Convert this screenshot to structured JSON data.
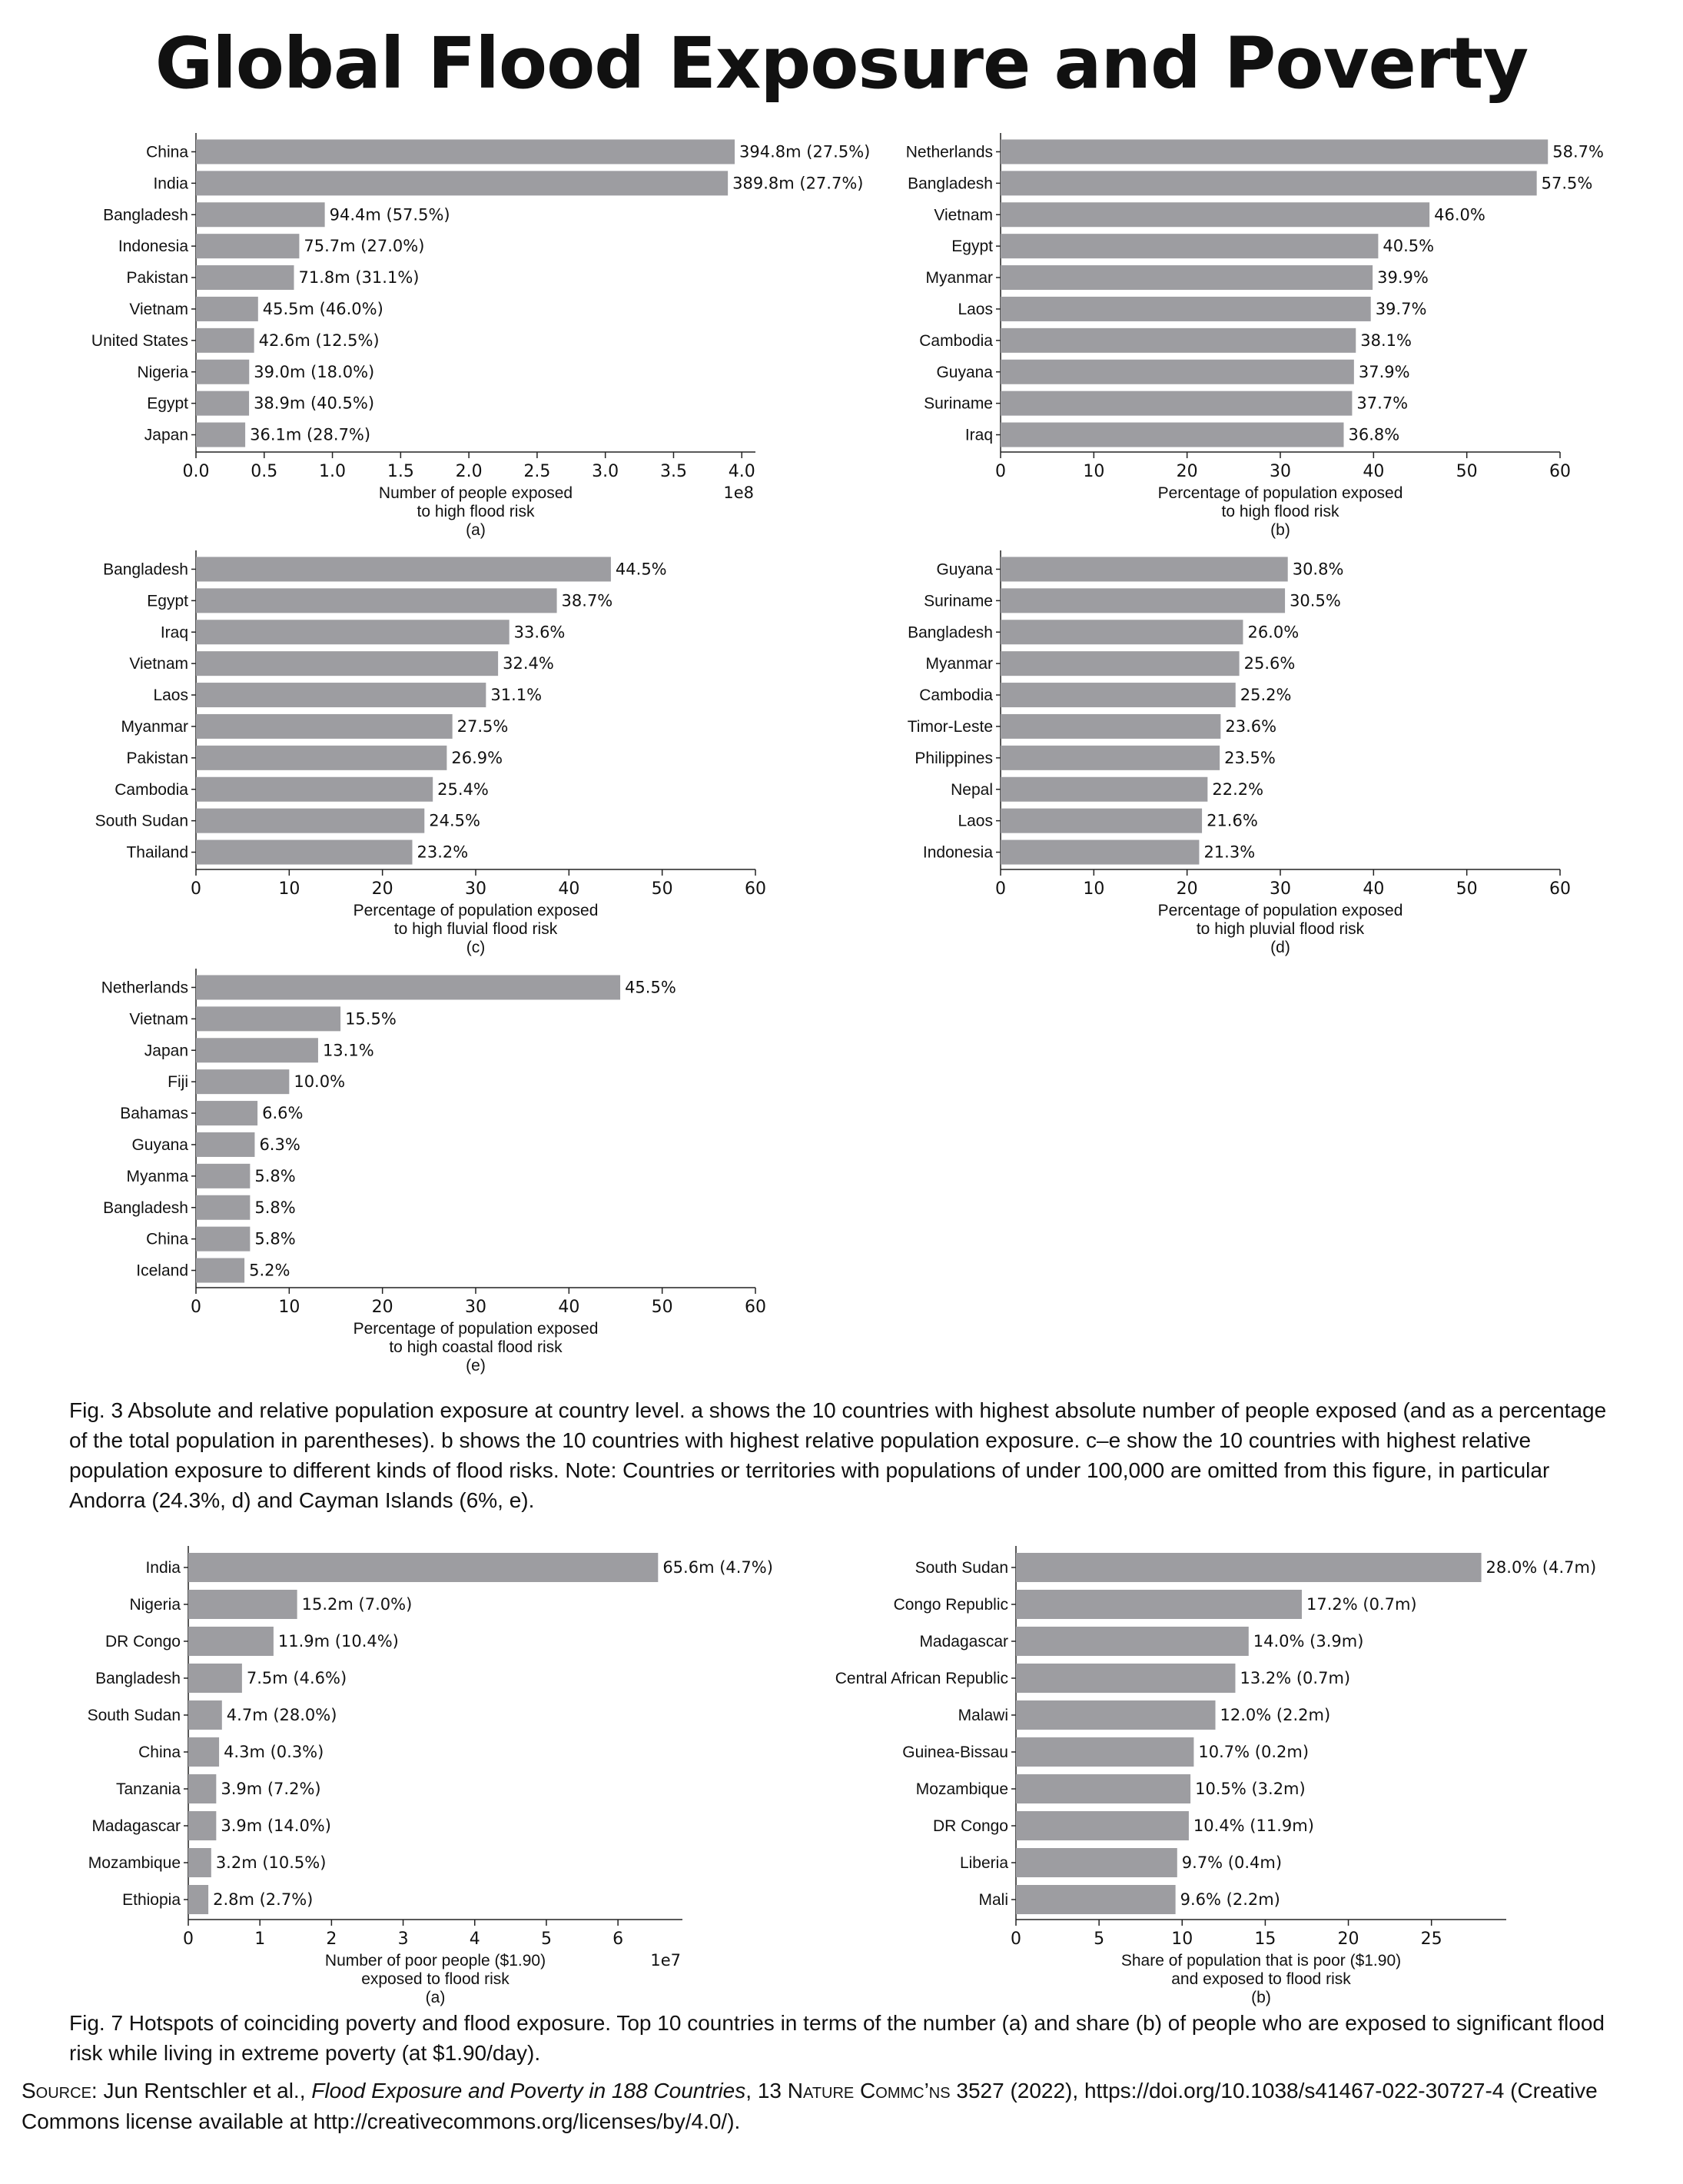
{
  "title": "Global Flood Exposure and Poverty",
  "captions": {
    "fig3": "Fig. 3 Absolute and relative population exposure at country level. a shows the 10 countries with highest absolute number of people exposed (and as a percentage of the total population in parentheses). b shows the 10 countries with highest relative population exposure. c–e show the 10 countries with highest relative population exposure to different kinds of flood risks. Note: Countries or territories with populations of under 100,000 are omitted from this figure, in particular Andorra (24.3%, d) and Cayman Islands (6%, e).",
    "fig7": "Fig. 7 Hotspots of coinciding poverty and flood exposure. Top 10 countries in terms of the number (a) and share (b) of people who are exposed to significant flood risk while living in extreme poverty (at $1.90/day)."
  },
  "source": {
    "lead": "Source",
    "authors": ": Jun Rentschler et al., ",
    "work": "Flood Exposure and Poverty in 188 Countries",
    "vol": ", 13 ",
    "journal": "Nature Commc’ns",
    "rest": " 3527 (2022), https://doi.org/10.1038/s41467-022-30727-4 (Creative Commons license available at http://creativecommons.org/licenses/by/4.0/)."
  },
  "chart_data": [
    {
      "id": "fig3a",
      "type": "bar",
      "orientation": "horizontal",
      "categories": [
        "China",
        "India",
        "Bangladesh",
        "Indonesia",
        "Pakistan",
        "Vietnam",
        "United States",
        "Nigeria",
        "Egypt",
        "Japan"
      ],
      "values": [
        394800000,
        389800000,
        94400000,
        75700000,
        71800000,
        45500000,
        42600000,
        39000000,
        38900000,
        36100000
      ],
      "value_labels": [
        "394.8m (27.5%)",
        "389.8m (27.7%)",
        "94.4m (57.5%)",
        "75.7m (27.0%)",
        "71.8m (31.1%)",
        "45.5m (46.0%)",
        "42.6m (12.5%)",
        "39.0m (18.0%)",
        "38.9m (40.5%)",
        "36.1m (28.7%)"
      ],
      "xlim": [
        0,
        410000000
      ],
      "ticks": [
        0,
        50000000,
        100000000,
        150000000,
        200000000,
        250000000,
        300000000,
        350000000,
        400000000
      ],
      "tick_labels": [
        "0.0",
        "0.5",
        "1.0",
        "1.5",
        "2.0",
        "2.5",
        "3.0",
        "3.5",
        "4.0"
      ],
      "offset_label": "1e8",
      "xlabel": [
        "Number of people exposed",
        "to high flood risk",
        "(a)"
      ],
      "bar_color": "#9d9da1"
    },
    {
      "id": "fig3b",
      "type": "bar",
      "orientation": "horizontal",
      "categories": [
        "Netherlands",
        "Bangladesh",
        "Vietnam",
        "Egypt",
        "Myanmar",
        "Laos",
        "Cambodia",
        "Guyana",
        "Suriname",
        "Iraq"
      ],
      "values": [
        58.7,
        57.5,
        46.0,
        40.5,
        39.9,
        39.7,
        38.1,
        37.9,
        37.7,
        36.8
      ],
      "value_labels": [
        "58.7%",
        "57.5%",
        "46.0%",
        "40.5%",
        "39.9%",
        "39.7%",
        "38.1%",
        "37.9%",
        "37.7%",
        "36.8%"
      ],
      "xlim": [
        0,
        60
      ],
      "ticks": [
        0,
        10,
        20,
        30,
        40,
        50,
        60
      ],
      "tick_labels": [
        "0",
        "10",
        "20",
        "30",
        "40",
        "50",
        "60"
      ],
      "offset_label": "",
      "xlabel": [
        "Percentage of population exposed",
        "to high flood risk",
        "(b)"
      ],
      "bar_color": "#9d9da1"
    },
    {
      "id": "fig3c",
      "type": "bar",
      "orientation": "horizontal",
      "categories": [
        "Bangladesh",
        "Egypt",
        "Iraq",
        "Vietnam",
        "Laos",
        "Myanmar",
        "Pakistan",
        "Cambodia",
        "South Sudan",
        "Thailand"
      ],
      "values": [
        44.5,
        38.7,
        33.6,
        32.4,
        31.1,
        27.5,
        26.9,
        25.4,
        24.5,
        23.2
      ],
      "value_labels": [
        "44.5%",
        "38.7%",
        "33.6%",
        "32.4%",
        "31.1%",
        "27.5%",
        "26.9%",
        "25.4%",
        "24.5%",
        "23.2%"
      ],
      "xlim": [
        0,
        60
      ],
      "ticks": [
        0,
        10,
        20,
        30,
        40,
        50,
        60
      ],
      "tick_labels": [
        "0",
        "10",
        "20",
        "30",
        "40",
        "50",
        "60"
      ],
      "offset_label": "",
      "xlabel": [
        "Percentage of population exposed",
        "to high fluvial flood risk",
        "(c)"
      ],
      "bar_color": "#9d9da1"
    },
    {
      "id": "fig3d",
      "type": "bar",
      "orientation": "horizontal",
      "categories": [
        "Guyana",
        "Suriname",
        "Bangladesh",
        "Myanmar",
        "Cambodia",
        "Timor-Leste",
        "Philippines",
        "Nepal",
        "Laos",
        "Indonesia"
      ],
      "values": [
        30.8,
        30.5,
        26.0,
        25.6,
        25.2,
        23.6,
        23.5,
        22.2,
        21.6,
        21.3
      ],
      "value_labels": [
        "30.8%",
        "30.5%",
        "26.0%",
        "25.6%",
        "25.2%",
        "23.6%",
        "23.5%",
        "22.2%",
        "21.6%",
        "21.3%"
      ],
      "xlim": [
        0,
        60
      ],
      "ticks": [
        0,
        10,
        20,
        30,
        40,
        50,
        60
      ],
      "tick_labels": [
        "0",
        "10",
        "20",
        "30",
        "40",
        "50",
        "60"
      ],
      "offset_label": "",
      "xlabel": [
        "Percentage of population exposed",
        "to high pluvial flood risk",
        "(d)"
      ],
      "bar_color": "#9d9da1"
    },
    {
      "id": "fig3e",
      "type": "bar",
      "orientation": "horizontal",
      "categories": [
        "Netherlands",
        "Vietnam",
        "Japan",
        "Fiji",
        "Bahamas",
        "Guyana",
        "Myanma",
        "Bangladesh",
        "China",
        "Iceland"
      ],
      "values": [
        45.5,
        15.5,
        13.1,
        10.0,
        6.6,
        6.3,
        5.8,
        5.8,
        5.8,
        5.2
      ],
      "value_labels": [
        "45.5%",
        "15.5%",
        "13.1%",
        "10.0%",
        "6.6%",
        "6.3%",
        "5.8%",
        "5.8%",
        "5.8%",
        "5.2%"
      ],
      "xlim": [
        0,
        60
      ],
      "ticks": [
        0,
        10,
        20,
        30,
        40,
        50,
        60
      ],
      "tick_labels": [
        "0",
        "10",
        "20",
        "30",
        "40",
        "50",
        "60"
      ],
      "offset_label": "",
      "xlabel": [
        "Percentage of population exposed",
        "to high coastal flood risk",
        "(e)"
      ],
      "bar_color": "#9d9da1"
    },
    {
      "id": "fig7a",
      "type": "bar",
      "orientation": "horizontal",
      "categories": [
        "India",
        "Nigeria",
        "DR Congo",
        "Bangladesh",
        "South Sudan",
        "China",
        "Tanzania",
        "Madagascar",
        "Mozambique",
        "Ethiopia"
      ],
      "values": [
        65600000,
        15200000,
        11900000,
        7500000,
        4700000,
        4300000,
        3900000,
        3900000,
        3200000,
        2800000
      ],
      "value_labels": [
        "65.6m (4.7%)",
        "15.2m (7.0%)",
        "11.9m (10.4%)",
        "7.5m (4.6%)",
        "4.7m (28.0%)",
        "4.3m (0.3%)",
        "3.9m (7.2%)",
        "3.9m (14.0%)",
        "3.2m (10.5%)",
        "2.8m (2.7%)"
      ],
      "xlim": [
        0,
        69000000
      ],
      "ticks": [
        0,
        10000000,
        20000000,
        30000000,
        40000000,
        50000000,
        60000000
      ],
      "tick_labels": [
        "0",
        "1",
        "2",
        "3",
        "4",
        "5",
        "6"
      ],
      "offset_label": "1e7",
      "xlabel": [
        "Number of poor people ($1.90)",
        "exposed to flood risk",
        "(a)"
      ],
      "bar_color": "#9d9da1"
    },
    {
      "id": "fig7b",
      "type": "bar",
      "orientation": "horizontal",
      "categories": [
        "South Sudan",
        "Congo Republic",
        "Madagascar",
        "Central African Republic",
        "Malawi",
        "Guinea-Bissau",
        "Mozambique",
        "DR Congo",
        "Liberia",
        "Mali"
      ],
      "values": [
        28.0,
        17.2,
        14.0,
        13.2,
        12.0,
        10.7,
        10.5,
        10.4,
        9.7,
        9.6
      ],
      "value_labels": [
        "28.0% (4.7m)",
        "17.2% (0.7m)",
        "14.0% (3.9m)",
        "13.2% (0.7m)",
        "12.0% (2.2m)",
        "10.7% (0.2m)",
        "10.5% (3.2m)",
        "10.4% (11.9m)",
        "9.7% (0.4m)",
        "9.6% (2.2m)"
      ],
      "xlim": [
        0,
        29.5
      ],
      "ticks": [
        0,
        5,
        10,
        15,
        20,
        25
      ],
      "tick_labels": [
        "0",
        "5",
        "10",
        "15",
        "20",
        "25"
      ],
      "offset_label": "",
      "xlabel": [
        "Share of population that is poor ($1.90)",
        "and exposed to flood risk",
        "(b)"
      ],
      "bar_color": "#9d9da1"
    }
  ]
}
